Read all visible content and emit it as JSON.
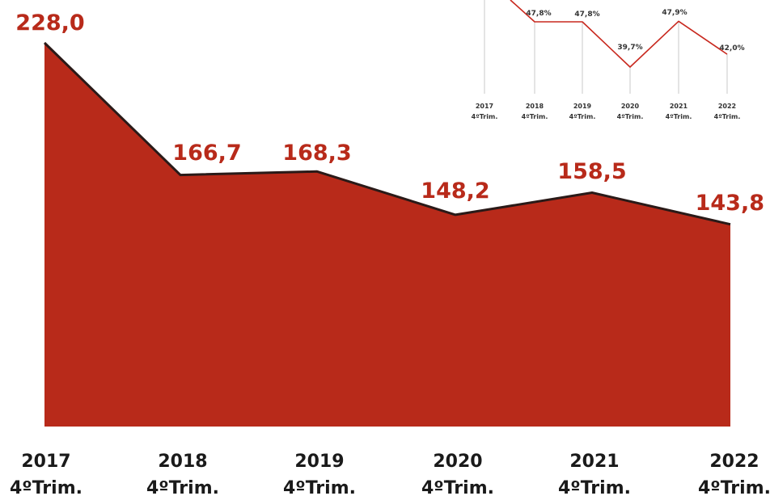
{
  "colors": {
    "area_fill": "#b82a1a",
    "area_stroke": "#2a1a18",
    "value_label": "#b82a1a",
    "axis_text": "#1a1a1a",
    "inset_line": "#c8281e",
    "inset_drop": "#c8c8c8",
    "inset_text": "#333333"
  },
  "chart_data": [
    {
      "type": "area",
      "categories": [
        {
          "year": "2017",
          "quarter": "4ºTrim."
        },
        {
          "year": "2018",
          "quarter": "4ºTrim."
        },
        {
          "year": "2019",
          "quarter": "4ºTrim."
        },
        {
          "year": "2020",
          "quarter": "4ºTrim."
        },
        {
          "year": "2021",
          "quarter": "4ºTrim."
        },
        {
          "year": "2022",
          "quarter": "4ºTrim."
        }
      ],
      "values": [
        228.0,
        166.7,
        168.3,
        148.2,
        158.5,
        143.8
      ],
      "data_labels": [
        "228,0",
        "166,7",
        "168,3",
        "148,2",
        "158,5",
        "143,8"
      ],
      "ylim": [
        50,
        240
      ]
    },
    {
      "type": "line",
      "categories": [
        {
          "year": "2017",
          "quarter": "4ºTrim."
        },
        {
          "year": "2018",
          "quarter": "4ºTrim."
        },
        {
          "year": "2019",
          "quarter": "4ºTrim."
        },
        {
          "year": "2020",
          "quarter": "4ºTrim."
        },
        {
          "year": "2021",
          "quarter": "4ºTrim."
        },
        {
          "year": "2022",
          "quarter": "4ºTrim."
        }
      ],
      "values": [
        null,
        47.8,
        47.8,
        39.7,
        47.9,
        42.0
      ],
      "data_labels": [
        "",
        "47,8%",
        "47,8%",
        "39,7%",
        "47,9%",
        "42,0%"
      ],
      "ylim": [
        35,
        52
      ]
    }
  ]
}
